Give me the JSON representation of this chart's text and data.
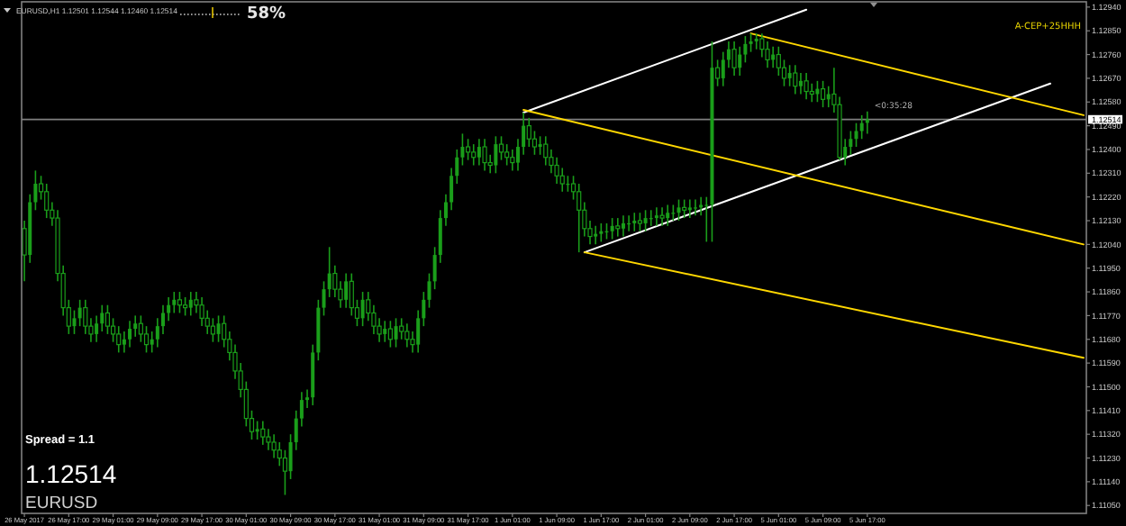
{
  "chart_data": {
    "type": "candlestick",
    "title": "EURUSD,H1  1.12501 1.12544 1.12460 1.12514",
    "color": "#1a9e1a",
    "categories": [
      "26 May 2017",
      null,
      null,
      null,
      null,
      null,
      null,
      null,
      "26 May 17:00",
      null,
      null,
      null,
      null,
      null,
      null,
      null,
      "29 May 01:00",
      null,
      null,
      null,
      null,
      null,
      null,
      null,
      "29 May 09:00",
      null,
      null,
      null,
      null,
      null,
      null,
      null,
      "29 May 17:00",
      null,
      null,
      null,
      null,
      null,
      null,
      null,
      "30 May 01:00",
      null,
      null,
      null,
      null,
      null,
      null,
      null,
      "30 May 09:00",
      null,
      null,
      null,
      null,
      null,
      null,
      null,
      "30 May 17:00",
      null,
      null,
      null,
      null,
      null,
      null,
      null,
      "31 May 01:00",
      null,
      null,
      null,
      null,
      null,
      null,
      null,
      "31 May 09:00",
      null,
      null,
      null,
      null,
      null,
      null,
      null,
      "31 May 17:00",
      null,
      null,
      null,
      null,
      null,
      null,
      null,
      "1 Jun 01:00",
      null,
      null,
      null,
      null,
      null,
      null,
      null,
      "1 Jun 09:00",
      null,
      null,
      null,
      null,
      null,
      null,
      null,
      "1 Jun 17:00",
      null,
      null,
      null,
      null,
      null,
      null,
      null,
      "2 Jun 01:00",
      null,
      null,
      null,
      null,
      null,
      null,
      null,
      "2 Jun 09:00",
      null,
      null,
      null,
      null,
      null,
      null,
      null,
      "2 Jun 17:00",
      null,
      null,
      null,
      null,
      null,
      null,
      null,
      "5 Jun 01:00",
      null,
      null,
      null,
      null,
      null,
      null,
      null,
      "5 Jun 09:00",
      null,
      null,
      null,
      null,
      null,
      null,
      null,
      "5 Jun 17:00",
      null,
      null,
      null,
      null,
      null,
      null,
      null,
      null,
      null,
      null,
      null,
      null,
      null,
      null,
      null,
      null,
      null,
      null,
      null,
      null,
      null,
      null,
      null,
      null,
      null,
      null,
      null,
      null,
      null,
      null,
      null,
      null,
      null,
      null,
      null,
      null,
      null,
      null,
      null
    ],
    "ohlc": [
      [
        1.121,
        1.1213,
        1.119,
        1.12
      ],
      [
        1.12,
        1.1223,
        1.1197,
        1.122
      ],
      [
        1.122,
        1.1232,
        1.1217,
        1.1227
      ],
      [
        1.1227,
        1.123,
        1.1221,
        1.1224
      ],
      [
        1.1224,
        1.1227,
        1.1214,
        1.1217
      ],
      [
        1.1217,
        1.122,
        1.1211,
        1.1214
      ],
      [
        1.1214,
        1.1217,
        1.119,
        1.1193
      ],
      [
        1.1193,
        1.1196,
        1.1177,
        1.118
      ],
      [
        1.118,
        1.1183,
        1.117,
        1.1173
      ],
      [
        1.1173,
        1.1179,
        1.117,
        1.1176
      ],
      [
        1.1176,
        1.1183,
        1.1173,
        1.118
      ],
      [
        1.118,
        1.1183,
        1.117,
        1.1173
      ],
      [
        1.1173,
        1.1176,
        1.1167,
        1.117
      ],
      [
        1.117,
        1.1177,
        1.1167,
        1.1174
      ],
      [
        1.1174,
        1.1181,
        1.1171,
        1.1178
      ],
      [
        1.1178,
        1.1181,
        1.117,
        1.1173
      ],
      [
        1.1173,
        1.1176,
        1.1167,
        1.117
      ],
      [
        1.117,
        1.1173,
        1.1163,
        1.1166
      ],
      [
        1.1166,
        1.1171,
        1.1163,
        1.1168
      ],
      [
        1.1168,
        1.1175,
        1.1165,
        1.1172
      ],
      [
        1.1172,
        1.1177,
        1.1169,
        1.1174
      ],
      [
        1.1174,
        1.1177,
        1.1167,
        1.117
      ],
      [
        1.117,
        1.1173,
        1.1163,
        1.1166
      ],
      [
        1.1166,
        1.1171,
        1.1163,
        1.1168
      ],
      [
        1.1168,
        1.1176,
        1.1165,
        1.1173
      ],
      [
        1.1173,
        1.1181,
        1.117,
        1.1178
      ],
      [
        1.1178,
        1.1184,
        1.1175,
        1.1181
      ],
      [
        1.1181,
        1.1186,
        1.1178,
        1.1183
      ],
      [
        1.1183,
        1.1186,
        1.1178,
        1.1181
      ],
      [
        1.1181,
        1.1184,
        1.1177,
        1.118
      ],
      [
        1.118,
        1.1186,
        1.1177,
        1.1183
      ],
      [
        1.1183,
        1.1186,
        1.1178,
        1.1181
      ],
      [
        1.1181,
        1.1184,
        1.1173,
        1.1176
      ],
      [
        1.1176,
        1.1179,
        1.117,
        1.1173
      ],
      [
        1.1173,
        1.1176,
        1.1167,
        1.117
      ],
      [
        1.117,
        1.1177,
        1.1167,
        1.1174
      ],
      [
        1.1174,
        1.1177,
        1.1165,
        1.1168
      ],
      [
        1.1168,
        1.1171,
        1.116,
        1.1163
      ],
      [
        1.1163,
        1.1166,
        1.1153,
        1.1156
      ],
      [
        1.1156,
        1.1159,
        1.1146,
        1.1149
      ],
      [
        1.1149,
        1.1152,
        1.1135,
        1.1138
      ],
      [
        1.1138,
        1.1141,
        1.113,
        1.1133
      ],
      [
        1.1133,
        1.1137,
        1.113,
        1.1134
      ],
      [
        1.1134,
        1.1137,
        1.1128,
        1.1131
      ],
      [
        1.1131,
        1.1134,
        1.1126,
        1.1129
      ],
      [
        1.1129,
        1.1132,
        1.1123,
        1.1126
      ],
      [
        1.1126,
        1.1129,
        1.112,
        1.1123
      ],
      [
        1.1123,
        1.1126,
        1.1109,
        1.1118
      ],
      [
        1.1118,
        1.1132,
        1.1115,
        1.1129
      ],
      [
        1.1129,
        1.1141,
        1.1126,
        1.1138
      ],
      [
        1.1138,
        1.1148,
        1.1135,
        1.1145
      ],
      [
        1.1145,
        1.1149,
        1.1142,
        1.1146
      ],
      [
        1.1146,
        1.1166,
        1.1143,
        1.1163
      ],
      [
        1.1163,
        1.1183,
        1.116,
        1.118
      ],
      [
        1.118,
        1.119,
        1.1177,
        1.1187
      ],
      [
        1.1187,
        1.1203,
        1.1184,
        1.1193
      ],
      [
        1.1193,
        1.1196,
        1.1184,
        1.1187
      ],
      [
        1.1187,
        1.119,
        1.118,
        1.1183
      ],
      [
        1.1183,
        1.1193,
        1.118,
        1.119
      ],
      [
        1.119,
        1.1193,
        1.1177,
        1.118
      ],
      [
        1.118,
        1.1183,
        1.1173,
        1.1176
      ],
      [
        1.1176,
        1.1186,
        1.1173,
        1.1183
      ],
      [
        1.1183,
        1.1186,
        1.1175,
        1.1178
      ],
      [
        1.1178,
        1.1181,
        1.117,
        1.1173
      ],
      [
        1.1173,
        1.1176,
        1.1167,
        1.117
      ],
      [
        1.117,
        1.1175,
        1.1167,
        1.1172
      ],
      [
        1.1172,
        1.1175,
        1.1165,
        1.1168
      ],
      [
        1.1168,
        1.1176,
        1.1165,
        1.1173
      ],
      [
        1.1173,
        1.1176,
        1.1168,
        1.1171
      ],
      [
        1.1171,
        1.1174,
        1.1165,
        1.1168
      ],
      [
        1.1168,
        1.1171,
        1.1163,
        1.1166
      ],
      [
        1.1166,
        1.1179,
        1.1163,
        1.1176
      ],
      [
        1.1176,
        1.1186,
        1.1173,
        1.1183
      ],
      [
        1.1183,
        1.1193,
        1.118,
        1.119
      ],
      [
        1.119,
        1.1203,
        1.1187,
        1.12
      ],
      [
        1.12,
        1.1217,
        1.1197,
        1.1214
      ],
      [
        1.1214,
        1.1223,
        1.1211,
        1.122
      ],
      [
        1.122,
        1.1233,
        1.1217,
        1.123
      ],
      [
        1.123,
        1.124,
        1.1227,
        1.1237
      ],
      [
        1.1237,
        1.1246,
        1.1234,
        1.1241
      ],
      [
        1.1241,
        1.1244,
        1.1236,
        1.1239
      ],
      [
        1.1239,
        1.1242,
        1.1234,
        1.1237
      ],
      [
        1.1237,
        1.1244,
        1.1234,
        1.1241
      ],
      [
        1.1241,
        1.1244,
        1.1232,
        1.1235
      ],
      [
        1.1235,
        1.1238,
        1.1231,
        1.1234
      ],
      [
        1.1234,
        1.1245,
        1.1231,
        1.1242
      ],
      [
        1.1242,
        1.1245,
        1.1236,
        1.1239
      ],
      [
        1.1239,
        1.1242,
        1.1234,
        1.1237
      ],
      [
        1.1237,
        1.124,
        1.1232,
        1.1235
      ],
      [
        1.1235,
        1.1244,
        1.1232,
        1.1241
      ],
      [
        1.1241,
        1.1254,
        1.1238,
        1.1249
      ],
      [
        1.1249,
        1.1252,
        1.1241,
        1.1244
      ],
      [
        1.1244,
        1.1247,
        1.1238,
        1.1241
      ],
      [
        1.1241,
        1.1245,
        1.1238,
        1.1242
      ],
      [
        1.1242,
        1.1245,
        1.1234,
        1.1237
      ],
      [
        1.1237,
        1.124,
        1.1231,
        1.1234
      ],
      [
        1.1234,
        1.1237,
        1.1227,
        1.123
      ],
      [
        1.123,
        1.1233,
        1.1224,
        1.1227
      ],
      [
        1.1227,
        1.123,
        1.1224,
        1.1227
      ],
      [
        1.1227,
        1.123,
        1.1221,
        1.1224
      ],
      [
        1.1224,
        1.1227,
        1.1201,
        1.1217
      ],
      [
        1.1217,
        1.122,
        1.1207,
        1.121
      ],
      [
        1.121,
        1.1213,
        1.1204,
        1.1207
      ],
      [
        1.1207,
        1.1211,
        1.1204,
        1.1208
      ],
      [
        1.1208,
        1.1212,
        1.1205,
        1.1209
      ],
      [
        1.1209,
        1.1212,
        1.1206,
        1.1209
      ],
      [
        1.1209,
        1.1214,
        1.1206,
        1.1211
      ],
      [
        1.1211,
        1.1214,
        1.1207,
        1.121
      ],
      [
        1.121,
        1.1215,
        1.1207,
        1.1212
      ],
      [
        1.1212,
        1.1215,
        1.1209,
        1.1212
      ],
      [
        1.1212,
        1.1216,
        1.1209,
        1.1213
      ],
      [
        1.1213,
        1.1216,
        1.1209,
        1.1212
      ],
      [
        1.1212,
        1.1217,
        1.1209,
        1.1214
      ],
      [
        1.1214,
        1.1217,
        1.1211,
        1.1214
      ],
      [
        1.1214,
        1.1218,
        1.1211,
        1.1215
      ],
      [
        1.1215,
        1.1218,
        1.1211,
        1.1214
      ],
      [
        1.1214,
        1.1219,
        1.1211,
        1.1216
      ],
      [
        1.1216,
        1.1219,
        1.1213,
        1.1216
      ],
      [
        1.1216,
        1.1221,
        1.1213,
        1.1218
      ],
      [
        1.1218,
        1.1221,
        1.1214,
        1.1217
      ],
      [
        1.1217,
        1.1221,
        1.1214,
        1.1218
      ],
      [
        1.1218,
        1.1221,
        1.1215,
        1.1218
      ],
      [
        1.1218,
        1.1222,
        1.1215,
        1.1219
      ],
      [
        1.1219,
        1.1222,
        1.1205,
        1.1219
      ],
      [
        1.1219,
        1.1281,
        1.1205,
        1.1271
      ],
      [
        1.1271,
        1.1274,
        1.1264,
        1.1267
      ],
      [
        1.1267,
        1.1277,
        1.1264,
        1.1274
      ],
      [
        1.1274,
        1.1281,
        1.1271,
        1.1278
      ],
      [
        1.1278,
        1.1281,
        1.1268,
        1.1271
      ],
      [
        1.1271,
        1.1279,
        1.1268,
        1.1276
      ],
      [
        1.1276,
        1.1283,
        1.1273,
        1.128
      ],
      [
        1.128,
        1.1284,
        1.1277,
        1.1281
      ],
      [
        1.1281,
        1.1284,
        1.1278,
        1.1282
      ],
      [
        1.1282,
        1.1284,
        1.1275,
        1.1278
      ],
      [
        1.1278,
        1.1281,
        1.1271,
        1.1274
      ],
      [
        1.1274,
        1.1279,
        1.1271,
        1.1276
      ],
      [
        1.1276,
        1.1279,
        1.1268,
        1.1271
      ],
      [
        1.1271,
        1.1274,
        1.1264,
        1.1267
      ],
      [
        1.1267,
        1.1272,
        1.1264,
        1.1269
      ],
      [
        1.1269,
        1.1272,
        1.1261,
        1.1264
      ],
      [
        1.1264,
        1.1269,
        1.1261,
        1.1266
      ],
      [
        1.1266,
        1.1269,
        1.1259,
        1.1262
      ],
      [
        1.1262,
        1.1265,
        1.1258,
        1.1261
      ],
      [
        1.1261,
        1.1266,
        1.1258,
        1.1263
      ],
      [
        1.1263,
        1.1266,
        1.1256,
        1.1259
      ],
      [
        1.1259,
        1.1264,
        1.1256,
        1.1261
      ],
      [
        1.1261,
        1.1271,
        1.1254,
        1.1257
      ],
      [
        1.1257,
        1.126,
        1.1236,
        1.1237
      ],
      [
        1.1237,
        1.1244,
        1.1234,
        1.1241
      ],
      [
        1.1241,
        1.1247,
        1.1238,
        1.1244
      ],
      [
        1.1244,
        1.125,
        1.1241,
        1.1247
      ],
      [
        1.1247,
        1.1253,
        1.1244,
        1.125
      ],
      [
        1.12501,
        1.12544,
        1.1246,
        1.12514
      ],
      null,
      null,
      null,
      null,
      null,
      null,
      null,
      null,
      null,
      null,
      null,
      null,
      null,
      null,
      null,
      null,
      null,
      null,
      null,
      null,
      null,
      null,
      null,
      null,
      null,
      null,
      null,
      null,
      null,
      null,
      null,
      null,
      null,
      null,
      null,
      null,
      null,
      null,
      null
    ],
    "series": [
      {
        "type": "line",
        "color": "#ffffff",
        "values": [
          null,
          null,
          null,
          null,
          null,
          null,
          null,
          null,
          null,
          null,
          null,
          null,
          null,
          null,
          null,
          null,
          null,
          null,
          null,
          null,
          null,
          null,
          null,
          null,
          null,
          null,
          null,
          null,
          null,
          null,
          null,
          null,
          null,
          null,
          null,
          null,
          null,
          null,
          null,
          null,
          null,
          null,
          null,
          null,
          null,
          null,
          null,
          null,
          null,
          null,
          null,
          null,
          null,
          null,
          null,
          null,
          null,
          null,
          null,
          null,
          null,
          null,
          null,
          null,
          null,
          null,
          null,
          null,
          null,
          null,
          null,
          null,
          null,
          null,
          null,
          null,
          null,
          null,
          null,
          null,
          null,
          null,
          null,
          null,
          null,
          null,
          null,
          null,
          null,
          null,
          1.1254,
          null,
          null,
          null,
          null,
          null,
          null,
          null,
          null,
          null,
          null,
          null,
          null,
          null,
          null,
          null,
          null,
          null,
          null,
          null,
          null,
          null,
          null,
          null,
          null,
          null,
          null,
          null,
          null,
          null,
          null,
          null,
          null,
          null,
          null,
          null,
          null,
          null,
          null,
          null,
          null,
          null,
          null,
          null,
          null,
          null,
          null,
          null,
          null,
          null,
          null,
          1.1293,
          null,
          null,
          null,
          null,
          null,
          null,
          null,
          null,
          null,
          null,
          null,
          null,
          null,
          null,
          null,
          null,
          null,
          null,
          null,
          null,
          null,
          null,
          null,
          null,
          null,
          null,
          null,
          null,
          null,
          null,
          null,
          null,
          null,
          null,
          null,
          null,
          null,
          null,
          null,
          null,
          null,
          null,
          null,
          null,
          null,
          null,
          null,
          null,
          null,
          null
        ]
      },
      {
        "type": "line",
        "color": "#ffffff",
        "values": [
          null,
          null,
          null,
          null,
          null,
          null,
          null,
          null,
          null,
          null,
          null,
          null,
          null,
          null,
          null,
          null,
          null,
          null,
          null,
          null,
          null,
          null,
          null,
          null,
          null,
          null,
          null,
          null,
          null,
          null,
          null,
          null,
          null,
          null,
          null,
          null,
          null,
          null,
          null,
          null,
          null,
          null,
          null,
          null,
          null,
          null,
          null,
          null,
          null,
          null,
          null,
          null,
          null,
          null,
          null,
          null,
          null,
          null,
          null,
          null,
          null,
          null,
          null,
          null,
          null,
          null,
          null,
          null,
          null,
          null,
          null,
          null,
          null,
          null,
          null,
          null,
          null,
          null,
          null,
          null,
          null,
          null,
          null,
          null,
          null,
          null,
          null,
          null,
          null,
          null,
          null,
          null,
          null,
          null,
          null,
          null,
          null,
          null,
          null,
          null,
          null,
          1.1201,
          null,
          null,
          null,
          null,
          null,
          null,
          null,
          null,
          null,
          null,
          null,
          null,
          null,
          null,
          null,
          null,
          null,
          null,
          null,
          null,
          null,
          null,
          null,
          null,
          null,
          null,
          null,
          null,
          null,
          null,
          null,
          null,
          null,
          null,
          null,
          null,
          null,
          null,
          null,
          null,
          null,
          null,
          null,
          null,
          null,
          null,
          null,
          null,
          null,
          null,
          null,
          null,
          null,
          null,
          null,
          null,
          null,
          null,
          null,
          null,
          null,
          null,
          null,
          null,
          null,
          null,
          null,
          null,
          null,
          null,
          null,
          null,
          null,
          null,
          null,
          null,
          null,
          null,
          null,
          null,
          null,
          null,
          null,
          1.1265,
          null,
          null,
          null,
          null,
          null,
          null
        ]
      },
      {
        "type": "line",
        "color": "#ffd700",
        "values": [
          null,
          null,
          null,
          null,
          null,
          null,
          null,
          null,
          null,
          null,
          null,
          null,
          null,
          null,
          null,
          null,
          null,
          null,
          null,
          null,
          null,
          null,
          null,
          null,
          null,
          null,
          null,
          null,
          null,
          null,
          null,
          null,
          null,
          null,
          null,
          null,
          null,
          null,
          null,
          null,
          null,
          null,
          null,
          null,
          null,
          null,
          null,
          null,
          null,
          null,
          null,
          null,
          null,
          null,
          null,
          null,
          null,
          null,
          null,
          null,
          null,
          null,
          null,
          null,
          null,
          null,
          null,
          null,
          null,
          null,
          null,
          null,
          null,
          null,
          null,
          null,
          null,
          null,
          null,
          null,
          null,
          null,
          null,
          null,
          null,
          null,
          null,
          null,
          null,
          null,
          null,
          null,
          null,
          null,
          null,
          null,
          null,
          null,
          null,
          null,
          null,
          null,
          null,
          null,
          null,
          null,
          null,
          null,
          null,
          null,
          null,
          null,
          null,
          null,
          null,
          null,
          null,
          null,
          null,
          null,
          null,
          null,
          null,
          null,
          null,
          null,
          null,
          null,
          null,
          null,
          null,
          1.1284,
          null,
          null,
          null,
          null,
          null,
          null,
          null,
          null,
          null,
          null,
          null,
          null,
          null,
          null,
          null,
          null,
          null,
          null,
          null,
          null,
          null,
          null,
          null,
          null,
          null,
          null,
          null,
          null,
          null,
          null,
          null,
          null,
          null,
          null,
          null,
          null,
          null,
          null,
          null,
          null,
          null,
          null,
          null,
          null,
          null,
          null,
          null,
          null,
          null,
          null,
          null,
          null,
          null,
          null,
          null,
          null,
          null,
          null,
          null,
          1.1253
        ]
      },
      {
        "type": "line",
        "color": "#ffd700",
        "values": [
          null,
          null,
          null,
          null,
          null,
          null,
          null,
          null,
          null,
          null,
          null,
          null,
          null,
          null,
          null,
          null,
          null,
          null,
          null,
          null,
          null,
          null,
          null,
          null,
          null,
          null,
          null,
          null,
          null,
          null,
          null,
          null,
          null,
          null,
          null,
          null,
          null,
          null,
          null,
          null,
          null,
          null,
          null,
          null,
          null,
          null,
          null,
          null,
          null,
          null,
          null,
          null,
          null,
          null,
          null,
          null,
          null,
          null,
          null,
          null,
          null,
          null,
          null,
          null,
          null,
          null,
          null,
          null,
          null,
          null,
          null,
          null,
          null,
          null,
          null,
          null,
          null,
          null,
          null,
          null,
          null,
          null,
          null,
          null,
          null,
          null,
          null,
          null,
          null,
          null,
          1.1255,
          null,
          null,
          null,
          null,
          null,
          null,
          null,
          null,
          null,
          null,
          null,
          null,
          null,
          null,
          null,
          null,
          null,
          null,
          null,
          null,
          null,
          null,
          null,
          null,
          null,
          null,
          null,
          null,
          null,
          null,
          null,
          null,
          null,
          null,
          null,
          null,
          null,
          null,
          null,
          null,
          null,
          null,
          null,
          null,
          null,
          null,
          null,
          null,
          null,
          null,
          null,
          null,
          null,
          null,
          null,
          null,
          null,
          null,
          null,
          null,
          null,
          null,
          null,
          null,
          null,
          null,
          null,
          null,
          null,
          null,
          null,
          null,
          null,
          null,
          null,
          null,
          null,
          null,
          null,
          null,
          null,
          null,
          null,
          null,
          null,
          null,
          null,
          null,
          null,
          null,
          null,
          null,
          null,
          null,
          null,
          null,
          null,
          null,
          null,
          null,
          1.1204
        ]
      },
      {
        "type": "line",
        "color": "#ffd700",
        "values": [
          null,
          null,
          null,
          null,
          null,
          null,
          null,
          null,
          null,
          null,
          null,
          null,
          null,
          null,
          null,
          null,
          null,
          null,
          null,
          null,
          null,
          null,
          null,
          null,
          null,
          null,
          null,
          null,
          null,
          null,
          null,
          null,
          null,
          null,
          null,
          null,
          null,
          null,
          null,
          null,
          null,
          null,
          null,
          null,
          null,
          null,
          null,
          null,
          null,
          null,
          null,
          null,
          null,
          null,
          null,
          null,
          null,
          null,
          null,
          null,
          null,
          null,
          null,
          null,
          null,
          null,
          null,
          null,
          null,
          null,
          null,
          null,
          null,
          null,
          null,
          null,
          null,
          null,
          null,
          null,
          null,
          null,
          null,
          null,
          null,
          null,
          null,
          null,
          null,
          null,
          null,
          null,
          null,
          null,
          null,
          null,
          null,
          null,
          null,
          null,
          null,
          1.1201,
          null,
          null,
          null,
          null,
          null,
          null,
          null,
          null,
          null,
          null,
          null,
          null,
          null,
          null,
          null,
          null,
          null,
          null,
          null,
          null,
          null,
          null,
          null,
          null,
          null,
          null,
          null,
          null,
          null,
          null,
          null,
          null,
          null,
          null,
          null,
          null,
          null,
          null,
          null,
          null,
          null,
          null,
          null,
          null,
          null,
          null,
          null,
          null,
          null,
          null,
          null,
          null,
          null,
          null,
          null,
          null,
          null,
          null,
          null,
          null,
          null,
          null,
          null,
          null,
          null,
          null,
          null,
          null,
          null,
          null,
          null,
          null,
          null,
          null,
          null,
          null,
          null,
          null,
          null,
          null,
          null,
          null,
          null,
          null,
          null,
          null,
          null,
          null,
          null,
          1.1161
        ]
      }
    ],
    "ylim": [
      1.1102,
      1.1296
    ],
    "yticks": [
      {
        "value": 1.1105,
        "label": "1.11050"
      },
      {
        "value": 1.1114,
        "label": "1.11140"
      },
      {
        "value": 1.1123,
        "label": "1.11230"
      },
      {
        "value": 1.1132,
        "label": "1.11320"
      },
      {
        "value": 1.1141,
        "label": "1.11410"
      },
      {
        "value": 1.115,
        "label": "1.11500"
      },
      {
        "value": 1.1159,
        "label": "1.11590"
      },
      {
        "value": 1.1168,
        "label": "1.11680"
      },
      {
        "value": 1.1177,
        "label": "1.11770"
      },
      {
        "value": 1.1186,
        "label": "1.11860"
      },
      {
        "value": 1.1195,
        "label": "1.11950"
      },
      {
        "value": 1.1204,
        "label": "1.12040"
      },
      {
        "value": 1.1213,
        "label": "1.12130"
      },
      {
        "value": 1.1222,
        "label": "1.12220"
      },
      {
        "value": 1.1231,
        "label": "1.12310"
      },
      {
        "value": 1.124,
        "label": "1.12400"
      },
      {
        "value": 1.1249,
        "label": "1.12490"
      },
      {
        "value": 1.1258,
        "label": "1.12580"
      },
      {
        "value": 1.1267,
        "label": "1.12670"
      },
      {
        "value": 1.1276,
        "label": "1.12760"
      },
      {
        "value": 1.1285,
        "label": "1.12850"
      },
      {
        "value": 1.1294,
        "label": "1.12940"
      }
    ],
    "ref_lines": [
      {
        "axis": "y",
        "value": 1.12514,
        "label": "1.12514",
        "color": "#808080"
      }
    ],
    "annotations": [
      "58%",
      "A-CEP+25HHH",
      "<0:35:28",
      "Spread = 1.1",
      "1.12514",
      "EURUSD"
    ],
    "line_style": "solid"
  }
}
